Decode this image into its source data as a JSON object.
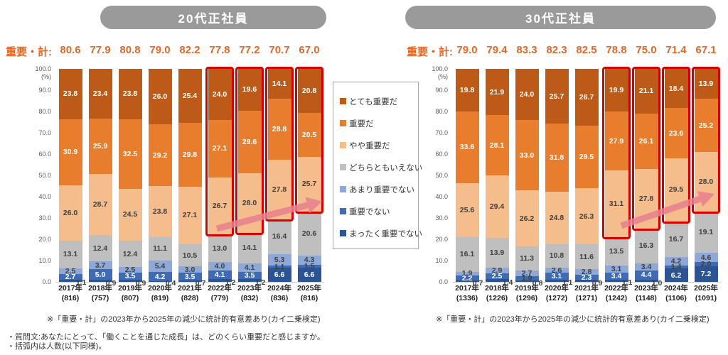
{
  "yaxis": {
    "unit": "(%)",
    "ticks": [
      "100.0",
      "90.0",
      "80.0",
      "70.0",
      "60.0",
      "50.0",
      "40.0",
      "30.0",
      "20.0",
      "10.0",
      "0.0"
    ]
  },
  "notes": {
    "line1": "・質問文:あなたにとって、「働くことを通じた成長」は、どのくらい重要だと感じますか。",
    "line2": "・括弧内は人数(以下同様)。"
  },
  "chart_data": [
    {
      "type": "stacked-bar-100",
      "title": "20代正社員",
      "summary_label": "重要・計:",
      "summary_values": [
        "80.6",
        "77.9",
        "80.8",
        "79.0",
        "82.2",
        "77.8",
        "77.2",
        "70.7",
        "67.0"
      ],
      "categories": [
        "2017年",
        "2018年",
        "2019年",
        "2020年",
        "2021年",
        "2022年",
        "2023年",
        "2024年",
        "2025年"
      ],
      "counts": [
        "(816)",
        "(757)",
        "(807)",
        "(819)",
        "(828)",
        "(779)",
        "(832)",
        "(836)",
        "(816)"
      ],
      "ylim": [
        0,
        100
      ],
      "series": [
        {
          "name": "とても重要だ",
          "color": "#bd5a18",
          "values": [
            23.8,
            23.4,
            23.8,
            26.0,
            25.4,
            24.0,
            19.6,
            14.1,
            20.8
          ]
        },
        {
          "name": "重要だ",
          "color": "#e97d2e",
          "values": [
            30.9,
            25.9,
            32.5,
            29.2,
            29.8,
            27.1,
            29.6,
            28.8,
            20.5
          ]
        },
        {
          "name": "やや重要だ",
          "color": "#f5bd8c",
          "values": [
            26.0,
            28.7,
            24.5,
            23.8,
            27.1,
            26.7,
            28.0,
            27.8,
            25.7
          ]
        },
        {
          "name": "どちらともいえない",
          "color": "#bfbfbf",
          "values": [
            13.1,
            12.4,
            12.4,
            11.1,
            10.5,
            13.0,
            14.1,
            16.4,
            20.6
          ]
        },
        {
          "name": "あまり重要でない",
          "color": "#8ea9d8",
          "values": [
            2.5,
            3.7,
            2.5,
            5.4,
            3.0,
            4.0,
            4.1,
            5.3,
            4.3
          ]
        },
        {
          "name": "重要でない",
          "color": "#3e6bb4",
          "values": [
            2.7,
            5.0,
            3.5,
            4.2,
            3.5,
            4.1,
            3.5,
            1.1,
            1.5
          ]
        },
        {
          "name": "まったく重要でない",
          "color": "#2a5494",
          "values": [
            1.1,
            0.9,
            0.9,
            0.4,
            0.7,
            1.2,
            1.2,
            6.6,
            6.6
          ]
        }
      ],
      "highlighted_categories": [
        "2022年",
        "2023年",
        "2024年",
        "2025年"
      ],
      "footnote": "※「重要・計」の2023年から2025年の減少に統計的有意差あり(カイ二乗検定)"
    },
    {
      "type": "stacked-bar-100",
      "title": "30代正社員",
      "summary_label": "重要・計:",
      "summary_values": [
        "79.0",
        "79.4",
        "83.3",
        "82.3",
        "82.5",
        "78.8",
        "75.0",
        "71.4",
        "67.1"
      ],
      "categories": [
        "2017年",
        "2018年",
        "2019年",
        "2020年",
        "2021年",
        "2022年",
        "2023年",
        "2024年",
        "2025年"
      ],
      "counts": [
        "(1336)",
        "(1226)",
        "(1296)",
        "(1272)",
        "(1271)",
        "(1242)",
        "(1148)",
        "(1106)",
        "(1091)"
      ],
      "ylim": [
        0,
        100
      ],
      "series": [
        {
          "name": "とても重要だ",
          "color": "#bd5a18",
          "values": [
            19.8,
            21.9,
            24.0,
            25.7,
            26.7,
            19.9,
            21.1,
            18.4,
            13.9
          ]
        },
        {
          "name": "重要だ",
          "color": "#e97d2e",
          "values": [
            33.6,
            28.1,
            33.0,
            31.8,
            29.5,
            27.9,
            26.1,
            23.6,
            25.2
          ]
        },
        {
          "name": "やや重要だ",
          "color": "#f5bd8c",
          "values": [
            25.6,
            29.4,
            26.2,
            24.8,
            26.3,
            31.1,
            27.8,
            29.5,
            28.0
          ]
        },
        {
          "name": "どちらともいえない",
          "color": "#bfbfbf",
          "values": [
            16.1,
            13.9,
            11.3,
            10.8,
            11.6,
            13.5,
            16.3,
            16.7,
            19.1
          ]
        },
        {
          "name": "あまり重要でない",
          "color": "#8ea9d8",
          "values": [
            1.9,
            2.9,
            2.7,
            2.6,
            2.8,
            3.1,
            3.4,
            4.2,
            4.6
          ]
        },
        {
          "name": "重要でない",
          "color": "#3e6bb4",
          "values": [
            2.2,
            2.5,
            1.9,
            3.1,
            2.3,
            3.4,
            4.4,
            1.4,
            2.0
          ]
        },
        {
          "name": "まったく重要でない",
          "color": "#2a5494",
          "values": [
            0.7,
            1.4,
            0.8,
            1.1,
            0.9,
            1.1,
            1.0,
            6.2,
            7.2
          ]
        }
      ],
      "highlighted_categories": [
        "2022年",
        "2023年",
        "2024年",
        "2025年"
      ],
      "footnote": "※「重要・計」の2023年から2025年の減少に統計的有意差あり(カイ二乗検定)"
    }
  ],
  "legend": {
    "items": [
      "とても重要だ",
      "重要だ",
      "やや重要だ",
      "どちらともいえない",
      "あまり重要でない",
      "重要でない",
      "まったく重要でない"
    ]
  },
  "style_colors": {
    "title_pill": "#9a9a9a",
    "summary_text": "#e2672a",
    "highlight_box": "#d40000",
    "trend_arrow": "#e8808e"
  }
}
